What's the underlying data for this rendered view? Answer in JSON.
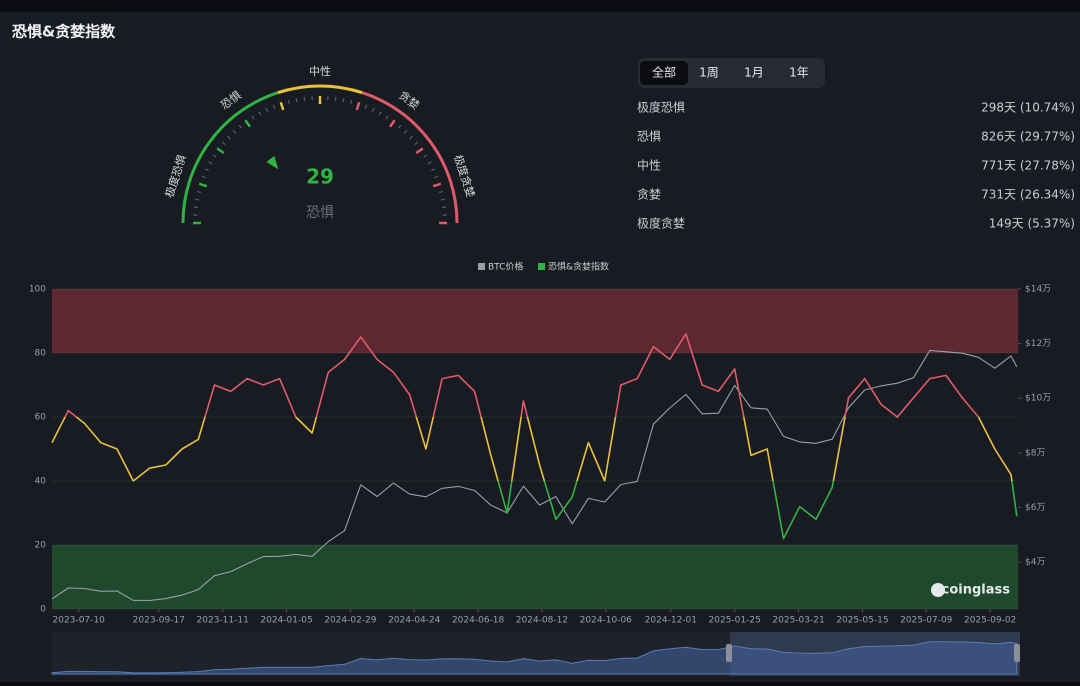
{
  "header": {
    "title": "恐惧&贪婪指数"
  },
  "gauge": {
    "labels": [
      "极度恐惧",
      "恐惧",
      "中性",
      "贪婪",
      "极度贪婪"
    ],
    "value": 29,
    "value_label": "恐惧"
  },
  "tabs": {
    "items": [
      "全部",
      "1周",
      "1月",
      "1年"
    ],
    "active": 0
  },
  "stats": [
    {
      "label": "极度恐惧",
      "value": "298天 (10.74%)"
    },
    {
      "label": "恐惧",
      "value": "826天 (29.77%)"
    },
    {
      "label": "中性",
      "value": "771天 (27.78%)"
    },
    {
      "label": "贪婪",
      "value": "731天 (26.34%)"
    },
    {
      "label": "极度贪婪",
      "value": "149天 (5.37%)"
    }
  ],
  "chart_data": {
    "type": "line",
    "annotation": "coinglass",
    "x": [
      "2023-06-17",
      "2023-07-01",
      "2023-07-15",
      "2023-07-29",
      "2023-08-12",
      "2023-08-26",
      "2023-09-09",
      "2023-09-23",
      "2023-10-07",
      "2023-10-21",
      "2023-11-04",
      "2023-11-18",
      "2023-12-02",
      "2023-12-16",
      "2023-12-30",
      "2024-01-13",
      "2024-01-27",
      "2024-02-10",
      "2024-02-24",
      "2024-03-09",
      "2024-03-23",
      "2024-04-06",
      "2024-04-20",
      "2024-05-04",
      "2024-05-18",
      "2024-06-01",
      "2024-06-15",
      "2024-06-29",
      "2024-07-13",
      "2024-07-27",
      "2024-08-10",
      "2024-08-24",
      "2024-09-07",
      "2024-09-21",
      "2024-10-05",
      "2024-10-19",
      "2024-11-02",
      "2024-11-16",
      "2024-11-30",
      "2024-12-14",
      "2024-12-28",
      "2025-01-11",
      "2025-01-25",
      "2025-02-08",
      "2025-02-22",
      "2025-03-08",
      "2025-03-22",
      "2025-04-05",
      "2025-04-19",
      "2025-05-03",
      "2025-05-17",
      "2025-05-31",
      "2025-06-14",
      "2025-06-28",
      "2025-07-12",
      "2025-07-26",
      "2025-08-09",
      "2025-08-23",
      "2025-09-06",
      "2025-09-20",
      "2025-09-25"
    ],
    "series": [
      {
        "name": "BTC价格",
        "color": "#9aa0a8",
        "axis": "y2",
        "values": [
          26500,
          30500,
          30300,
          29300,
          29400,
          26000,
          25900,
          26600,
          27900,
          29900,
          35000,
          36500,
          39400,
          42000,
          42100,
          42800,
          42100,
          47500,
          51500,
          68300,
          64000,
          68900,
          64900,
          63900,
          67000,
          67700,
          66200,
          60800,
          58000,
          67800,
          60900,
          64000,
          54000,
          63300,
          62000,
          68400,
          69500,
          90500,
          96400,
          101400,
          94300,
          94500,
          104700,
          96500,
          96000,
          86000,
          84000,
          83500,
          85000,
          96500,
          103000,
          104500,
          105500,
          107500,
          117500,
          117000,
          116500,
          115000,
          111000,
          115500,
          111500
        ]
      },
      {
        "name": "恐惧&贪婪指数",
        "color": "#2fb344",
        "zone_colors": [
          "#2fb344",
          "#e8c23a",
          "#e05a6a"
        ],
        "values": [
          52,
          62,
          58,
          52,
          50,
          40,
          44,
          45,
          50,
          53,
          70,
          68,
          72,
          70,
          72,
          60,
          55,
          74,
          78,
          85,
          78,
          74,
          67,
          50,
          72,
          73,
          68,
          48,
          30,
          65,
          45,
          28,
          35,
          52,
          40,
          70,
          72,
          82,
          78,
          86,
          70,
          68,
          75,
          48,
          50,
          22,
          32,
          28,
          38,
          66,
          72,
          64,
          60,
          66,
          72,
          73,
          66,
          60,
          50,
          42,
          29
        ]
      }
    ],
    "xlim": [
      "2023-06-17",
      "2025-09-26"
    ],
    "xticks": [
      "2023-07-10",
      "2023-09-17",
      "2023-11-11",
      "2024-01-05",
      "2024-02-29",
      "2024-04-24",
      "2024-06-18",
      "2024-08-12",
      "2024-10-06",
      "2024-12-01",
      "2025-01-25",
      "2025-03-21",
      "2025-05-15",
      "2025-07-09",
      "2025-09-02"
    ],
    "ylim": [
      0,
      100
    ],
    "yticks": [
      0,
      20,
      40,
      60,
      80,
      100
    ],
    "y2lim": [
      22800,
      140000
    ],
    "y2ticks": [
      {
        "value": 40000,
        "label": "$4万"
      },
      {
        "value": 60000,
        "label": "$6万"
      },
      {
        "value": 80000,
        "label": "$8万"
      },
      {
        "value": 100000,
        "label": "$10万"
      },
      {
        "value": 120000,
        "label": "$12万"
      },
      {
        "value": 140000,
        "label": "$14万"
      }
    ],
    "grid": true
  }
}
